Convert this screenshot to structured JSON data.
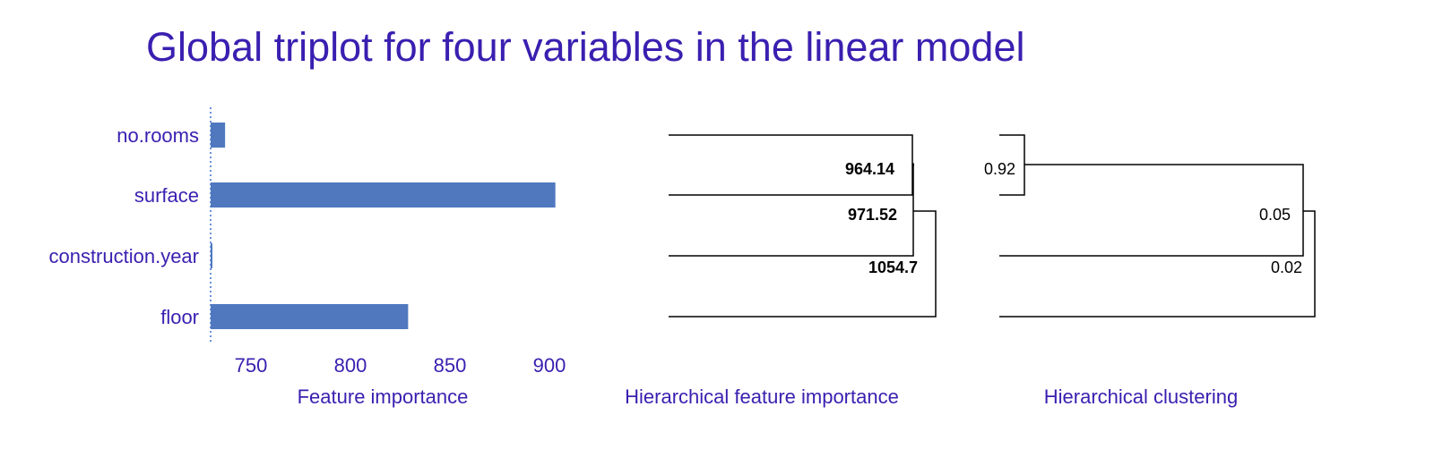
{
  "title": "Global triplot for four variables in the linear model",
  "colors": {
    "title": "#3a1fb0",
    "bar": "#4f78bf",
    "tree": "#000000"
  },
  "chart_data": [
    {
      "type": "bar",
      "orientation": "horizontal",
      "categories": [
        "no.rooms",
        "surface",
        "construction.year",
        "floor"
      ],
      "values": [
        737,
        903,
        730,
        829
      ],
      "baseline": 729.5,
      "xlim": [
        725,
        910
      ],
      "xticks": [
        750,
        800,
        850,
        900
      ],
      "xlabel": "Feature importance",
      "ylabel": "",
      "grid": false
    },
    {
      "type": "dendrogram",
      "xlabel": "Hierarchical feature importance",
      "merge_labels": [
        "964.14",
        "971.52",
        "1054.7"
      ]
    },
    {
      "type": "dendrogram",
      "xlabel": "Hierarchical clustering",
      "merge_labels": [
        "0.92",
        "0.05",
        "0.02"
      ]
    }
  ]
}
